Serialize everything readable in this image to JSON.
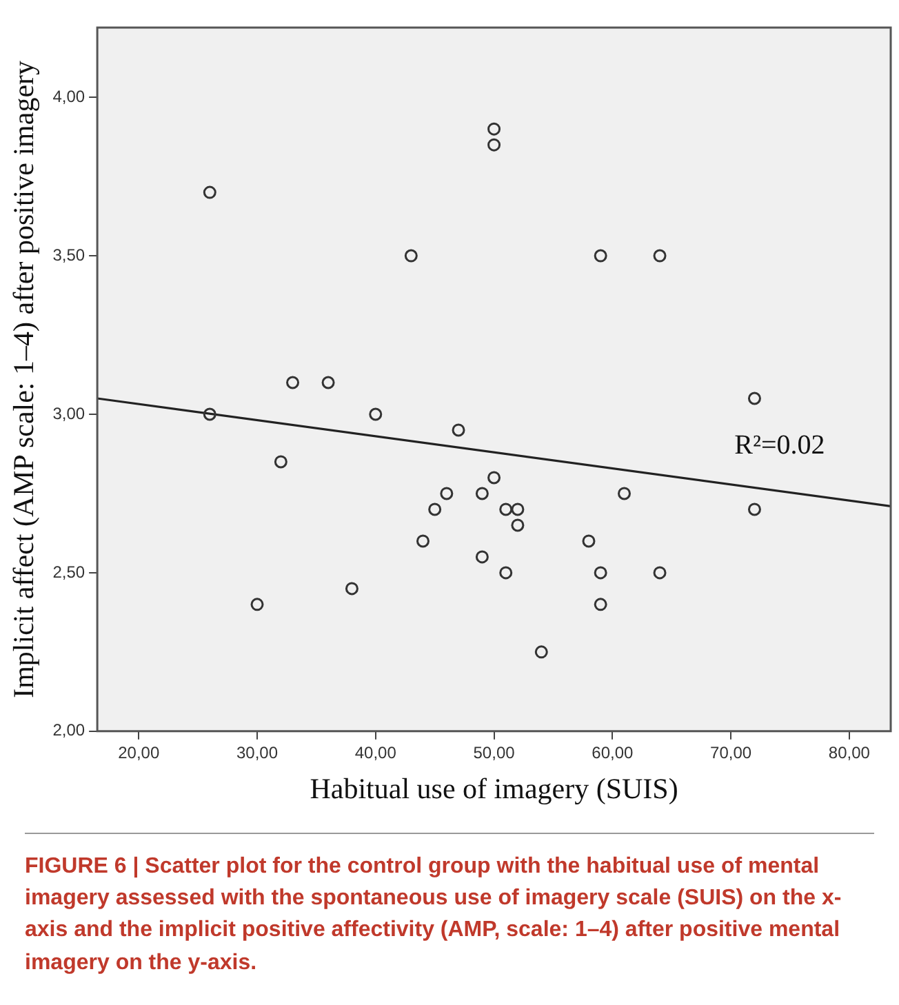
{
  "chart_data": {
    "type": "scatter",
    "xlabel": "Habitual use of imagery (SUIS)",
    "ylabel": "Implicit affect (AMP scale: 1–4) after positive imagery",
    "xlim": [
      16.5,
      83.5
    ],
    "ylim": [
      2,
      4.22
    ],
    "xticks": [
      {
        "value": 20,
        "label": "20,00"
      },
      {
        "value": 30,
        "label": "30,00"
      },
      {
        "value": 40,
        "label": "40,00"
      },
      {
        "value": 50,
        "label": "50,00"
      },
      {
        "value": 60,
        "label": "60,00"
      },
      {
        "value": 70,
        "label": "70,00"
      },
      {
        "value": 80,
        "label": "80,00"
      }
    ],
    "yticks": [
      {
        "value": 2,
        "label": "2,00"
      },
      {
        "value": 2.5,
        "label": "2,50"
      },
      {
        "value": 3,
        "label": "3,00"
      },
      {
        "value": 3.5,
        "label": "3,50"
      },
      {
        "value": 4,
        "label": "4,00"
      }
    ],
    "grid": false,
    "legend": false,
    "marker": "circle",
    "series": [
      {
        "color": "#333333",
        "x": [
          26,
          26,
          30,
          32,
          33,
          36,
          38,
          40,
          43,
          44,
          45,
          46,
          47,
          49,
          49,
          50,
          50,
          50,
          51,
          51,
          52,
          52,
          54,
          58,
          59,
          59,
          59,
          61,
          64,
          64,
          72,
          72
        ],
        "values": [
          3.7,
          3.0,
          2.4,
          2.85,
          3.1,
          3.1,
          2.45,
          3.0,
          3.5,
          2.6,
          2.7,
          2.75,
          2.95,
          2.75,
          2.55,
          3.9,
          3.85,
          2.8,
          2.7,
          2.5,
          2.7,
          2.65,
          2.25,
          2.6,
          3.5,
          2.5,
          2.4,
          2.75,
          3.5,
          2.5,
          3.05,
          2.7
        ]
      },
      {
        "type": "line",
        "color": "#222222",
        "marker": "none",
        "line_style": "solid",
        "x": [
          16.5,
          83.5
        ],
        "values": [
          3.05,
          2.71
        ]
      }
    ],
    "annotations": [
      "R²=0.02",
      "FIGURE 6 | Scatter plot for the control group with the habitual use of mental imagery assessed with the spontaneous use of imagery scale (SUIS) on the x-axis and the implicit positive affectivity (AMP, scale: 1–4) after positive mental imagery on the y-axis."
    ]
  }
}
